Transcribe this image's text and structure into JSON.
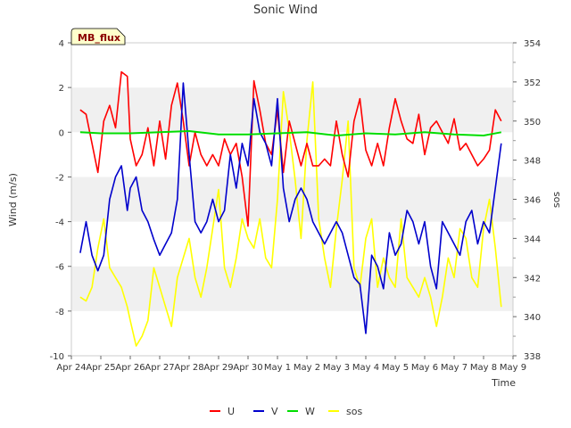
{
  "chart_data": {
    "type": "line",
    "title": "Sonic Wind",
    "xlabel": "Time",
    "ylabel": "Wind (m/s)",
    "y2label": "sos",
    "badge": "MB_flux",
    "ylim": [
      -10,
      4
    ],
    "y2lim": [
      338,
      354
    ],
    "xlim": [
      0,
      15
    ],
    "grid": "horizontal alternating bands",
    "legend_placement": "bottom",
    "x_ticks": [
      "Apr 24",
      "Apr 25",
      "Apr 26",
      "Apr 27",
      "Apr 28",
      "Apr 29",
      "Apr 30",
      "May 1",
      "May 2",
      "May 3",
      "May 4",
      "May 5",
      "May 6",
      "May 7",
      "May 8",
      "May 9"
    ],
    "y_ticks": [
      "-10",
      "-8",
      "-6",
      "-4",
      "-2",
      "0",
      "2",
      "4"
    ],
    "y2_ticks": [
      "338",
      "340",
      "342",
      "344",
      "346",
      "348",
      "350",
      "352",
      "354"
    ],
    "series": [
      {
        "name": "U",
        "color": "#ff0000",
        "axis": "left",
        "x": [
          0.3,
          0.5,
          0.7,
          0.9,
          1.1,
          1.3,
          1.5,
          1.7,
          1.9,
          2.0,
          2.2,
          2.4,
          2.6,
          2.8,
          3.0,
          3.2,
          3.4,
          3.6,
          3.8,
          4.0,
          4.2,
          4.4,
          4.6,
          4.8,
          5.0,
          5.2,
          5.4,
          5.6,
          5.8,
          6.0,
          6.2,
          6.4,
          6.6,
          6.8,
          7.0,
          7.2,
          7.4,
          7.6,
          7.8,
          8.0,
          8.2,
          8.4,
          8.6,
          8.8,
          9.0,
          9.2,
          9.4,
          9.6,
          9.8,
          10.0,
          10.2,
          10.4,
          10.6,
          10.8,
          11.0,
          11.2,
          11.4,
          11.6,
          11.8,
          12.0,
          12.2,
          12.4,
          12.6,
          12.8,
          13.0,
          13.2,
          13.4,
          13.6,
          13.8,
          14.0,
          14.2,
          14.4,
          14.6
        ],
        "values": [
          1.0,
          0.8,
          -0.5,
          -1.8,
          0.5,
          1.2,
          0.2,
          2.7,
          2.5,
          -0.3,
          -1.5,
          -1.0,
          0.2,
          -1.5,
          0.5,
          -1.2,
          1.2,
          2.2,
          0.5,
          -1.5,
          0.0,
          -1.0,
          -1.5,
          -1.0,
          -1.5,
          -0.3,
          -1.0,
          -0.5,
          -2.0,
          -4.2,
          2.3,
          1.0,
          -0.5,
          -1.0,
          1.0,
          -1.8,
          0.5,
          -0.5,
          -1.5,
          -0.5,
          -1.5,
          -1.5,
          -1.2,
          -1.5,
          0.5,
          -1.0,
          -2.0,
          0.5,
          1.5,
          -0.8,
          -1.5,
          -0.5,
          -1.5,
          0.2,
          1.5,
          0.5,
          -0.3,
          -0.5,
          0.8,
          -1.0,
          0.2,
          0.5,
          0.0,
          -0.5,
          0.6,
          -0.8,
          -0.5,
          -1.0,
          -1.5,
          -1.2,
          -0.8,
          1.0,
          0.5
        ]
      },
      {
        "name": "V",
        "color": "#0000cc",
        "axis": "left",
        "x": [
          0.3,
          0.5,
          0.7,
          0.9,
          1.1,
          1.3,
          1.5,
          1.7,
          1.9,
          2.0,
          2.2,
          2.4,
          2.6,
          2.8,
          3.0,
          3.2,
          3.4,
          3.6,
          3.8,
          4.0,
          4.2,
          4.4,
          4.6,
          4.8,
          5.0,
          5.2,
          5.4,
          5.6,
          5.8,
          6.0,
          6.2,
          6.4,
          6.6,
          6.8,
          7.0,
          7.2,
          7.4,
          7.6,
          7.8,
          8.0,
          8.2,
          8.4,
          8.6,
          8.8,
          9.0,
          9.2,
          9.4,
          9.6,
          9.8,
          10.0,
          10.2,
          10.4,
          10.6,
          10.8,
          11.0,
          11.2,
          11.4,
          11.6,
          11.8,
          12.0,
          12.2,
          12.4,
          12.6,
          12.8,
          13.0,
          13.2,
          13.4,
          13.6,
          13.8,
          14.0,
          14.2,
          14.4,
          14.6
        ],
        "values": [
          -5.4,
          -4.0,
          -5.5,
          -6.2,
          -5.5,
          -3.0,
          -2.0,
          -1.5,
          -3.5,
          -2.5,
          -2.0,
          -3.5,
          -4.0,
          -4.8,
          -5.5,
          -5.0,
          -4.5,
          -3.0,
          2.2,
          -1.0,
          -4.0,
          -4.5,
          -4.0,
          -3.0,
          -4.0,
          -3.5,
          -1.0,
          -2.5,
          -0.5,
          -1.5,
          1.5,
          0.0,
          -0.5,
          -1.5,
          1.5,
          -2.5,
          -4.0,
          -3.0,
          -2.5,
          -3.0,
          -4.0,
          -4.5,
          -5.0,
          -4.5,
          -4.0,
          -4.5,
          -5.5,
          -6.5,
          -6.8,
          -9.0,
          -5.5,
          -6.0,
          -7.0,
          -4.5,
          -5.5,
          -5.0,
          -3.5,
          -4.0,
          -5.0,
          -4.0,
          -6.0,
          -7.0,
          -4.0,
          -4.5,
          -5.0,
          -5.5,
          -4.0,
          -3.5,
          -5.0,
          -4.0,
          -4.5,
          -2.5,
          -0.5
        ]
      },
      {
        "name": "W",
        "color": "#00dd00",
        "axis": "left",
        "x": [
          0.3,
          1.0,
          2.0,
          3.0,
          4.0,
          5.0,
          6.0,
          7.0,
          8.0,
          9.0,
          10.0,
          11.0,
          12.0,
          13.0,
          14.0,
          14.6
        ],
        "values": [
          0.0,
          -0.05,
          -0.05,
          0.0,
          0.05,
          -0.1,
          -0.1,
          -0.05,
          0.0,
          -0.15,
          -0.05,
          -0.1,
          0.0,
          -0.1,
          -0.15,
          0.0
        ]
      },
      {
        "name": "sos",
        "color": "#ffff00",
        "axis": "right",
        "x": [
          0.3,
          0.5,
          0.7,
          0.9,
          1.1,
          1.3,
          1.5,
          1.7,
          1.9,
          2.0,
          2.2,
          2.4,
          2.6,
          2.8,
          3.0,
          3.2,
          3.4,
          3.6,
          3.8,
          4.0,
          4.2,
          4.4,
          4.6,
          4.8,
          5.0,
          5.2,
          5.4,
          5.6,
          5.8,
          6.0,
          6.2,
          6.4,
          6.6,
          6.8,
          7.0,
          7.2,
          7.4,
          7.6,
          7.8,
          8.0,
          8.2,
          8.4,
          8.6,
          8.8,
          9.0,
          9.2,
          9.4,
          9.6,
          9.8,
          10.0,
          10.2,
          10.4,
          10.6,
          10.8,
          11.0,
          11.2,
          11.4,
          11.6,
          11.8,
          12.0,
          12.2,
          12.4,
          12.6,
          12.8,
          13.0,
          13.2,
          13.4,
          13.6,
          13.8,
          14.0,
          14.2,
          14.4,
          14.6
        ],
        "values": [
          341.0,
          340.8,
          341.5,
          343.5,
          345.0,
          342.5,
          342.0,
          341.5,
          340.5,
          339.8,
          338.5,
          339.0,
          339.8,
          342.5,
          341.5,
          340.5,
          339.5,
          342.0,
          343.0,
          344.0,
          342.0,
          341.0,
          342.5,
          344.5,
          346.5,
          342.5,
          341.5,
          343.0,
          345.0,
          344.0,
          343.5,
          345.0,
          343.0,
          342.5,
          346.0,
          351.5,
          349.5,
          347.0,
          344.0,
          349.0,
          352.0,
          345.0,
          343.0,
          341.5,
          344.5,
          347.0,
          350.0,
          342.5,
          341.5,
          344.0,
          345.0,
          341.5,
          343.0,
          342.0,
          341.5,
          345.0,
          342.0,
          341.5,
          341.0,
          342.0,
          341.0,
          339.5,
          341.0,
          343.0,
          342.0,
          344.5,
          344.0,
          342.0,
          341.5,
          344.5,
          346.0,
          343.5,
          340.5
        ]
      }
    ]
  }
}
